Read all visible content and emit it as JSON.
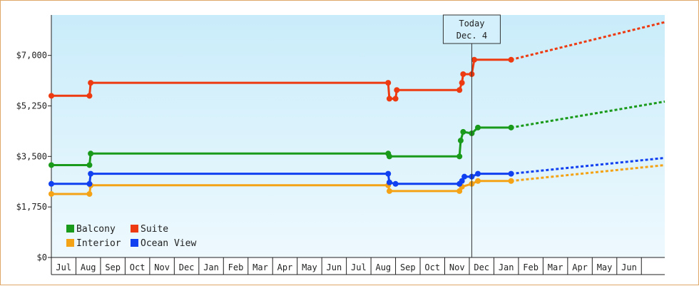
{
  "chart_data": {
    "type": "line",
    "title": "",
    "xlabel": "",
    "ylabel": "",
    "ylim": [
      0,
      8400
    ],
    "y_ticks": [
      "$0",
      "$1,750",
      "$3,500",
      "$5,250",
      "$7,000"
    ],
    "y_tick_values": [
      0,
      1750,
      3500,
      5250,
      7000
    ],
    "x_months": [
      "Jul",
      "Aug",
      "Sep",
      "Oct",
      "Nov",
      "Dec",
      "Jan",
      "Feb",
      "Mar",
      "Apr",
      "May",
      "Jun",
      "Jul",
      "Aug",
      "Sep",
      "Oct",
      "Nov",
      "Dec",
      "Jan",
      "Feb",
      "Mar",
      "Apr",
      "May",
      "Jun"
    ],
    "x_unit": "months from start of axis (0 = start of first Jul)",
    "xlim": [
      0,
      24.95
    ],
    "today_marker": {
      "line1": "Today",
      "line2": "Dec. 4",
      "x": 17.1
    },
    "grid": false,
    "legend_position": "bottom-left",
    "series": [
      {
        "name": "Balcony",
        "color": "#1a9a1a",
        "points": [
          [
            0,
            3200
          ],
          [
            1.55,
            3200
          ],
          [
            1.6,
            3600
          ],
          [
            13.7,
            3600
          ],
          [
            13.75,
            3500
          ],
          [
            16.6,
            3500
          ],
          [
            16.65,
            4050
          ],
          [
            16.75,
            4350
          ],
          [
            17.1,
            4300
          ],
          [
            17.35,
            4500
          ],
          [
            18.7,
            4500
          ]
        ],
        "projection": [
          [
            18.7,
            4500
          ],
          [
            24.95,
            5400
          ]
        ]
      },
      {
        "name": "Suite",
        "color": "#ee3a10",
        "points": [
          [
            0,
            5600
          ],
          [
            1.55,
            5600
          ],
          [
            1.6,
            6050
          ],
          [
            13.7,
            6050
          ],
          [
            13.75,
            5500
          ],
          [
            14.0,
            5500
          ],
          [
            14.05,
            5800
          ],
          [
            16.6,
            5800
          ],
          [
            16.7,
            6050
          ],
          [
            16.75,
            6350
          ],
          [
            17.1,
            6350
          ],
          [
            17.2,
            6850
          ],
          [
            18.7,
            6850
          ]
        ],
        "projection": [
          [
            18.7,
            6850
          ],
          [
            24.95,
            8150
          ]
        ]
      },
      {
        "name": "Interior",
        "color": "#f5a316",
        "points": [
          [
            0,
            2200
          ],
          [
            1.55,
            2200
          ],
          [
            1.6,
            2500
          ],
          [
            13.7,
            2500
          ],
          [
            13.75,
            2300
          ],
          [
            16.6,
            2300
          ],
          [
            16.7,
            2450
          ],
          [
            17.1,
            2550
          ],
          [
            17.35,
            2650
          ],
          [
            18.7,
            2650
          ]
        ],
        "projection": [
          [
            18.7,
            2650
          ],
          [
            24.95,
            3200
          ]
        ]
      },
      {
        "name": "Ocean View",
        "color": "#1040f0",
        "points": [
          [
            0,
            2550
          ],
          [
            1.55,
            2550
          ],
          [
            1.6,
            2900
          ],
          [
            13.7,
            2900
          ],
          [
            13.75,
            2600
          ],
          [
            14.0,
            2550
          ],
          [
            16.6,
            2550
          ],
          [
            16.7,
            2650
          ],
          [
            16.8,
            2800
          ],
          [
            17.1,
            2800
          ],
          [
            17.35,
            2900
          ],
          [
            18.7,
            2900
          ]
        ],
        "projection": [
          [
            18.7,
            2900
          ],
          [
            24.95,
            3450
          ]
        ]
      }
    ]
  }
}
